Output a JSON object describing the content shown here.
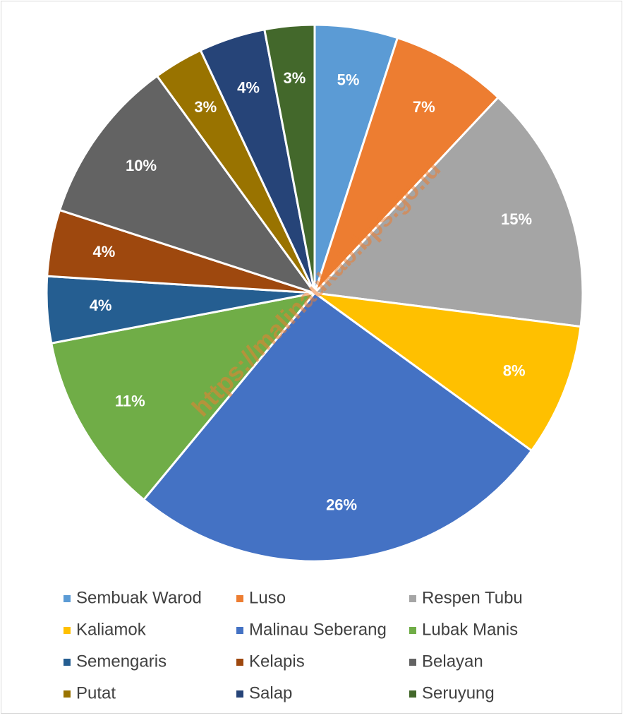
{
  "chart_data": {
    "type": "pie",
    "categories": [
      "Sembuak Warod",
      "Luso",
      "Respen Tubu",
      "Kaliamok",
      "Malinau Seberang",
      "Lubak Manis",
      "Semengaris",
      "Kelapis",
      "Belayan",
      "Putat",
      "Salap",
      "Seruyung"
    ],
    "values": [
      5,
      7,
      15,
      8,
      26,
      11,
      4,
      4,
      10,
      3,
      4,
      3
    ],
    "value_labels": [
      "5%",
      "7%",
      "15%",
      "8%",
      "26%",
      "11%",
      "4%",
      "4%",
      "10%",
      "3%",
      "4%",
      "3%"
    ],
    "colors": [
      "#5b9bd5",
      "#ed7d31",
      "#a5a5a5",
      "#ffc000",
      "#4472c4",
      "#70ad47",
      "#255e91",
      "#9e480e",
      "#636363",
      "#997300",
      "#264478",
      "#43682b"
    ],
    "legend": "bottom",
    "watermark": "https://malinaukab.bps.go.id"
  }
}
